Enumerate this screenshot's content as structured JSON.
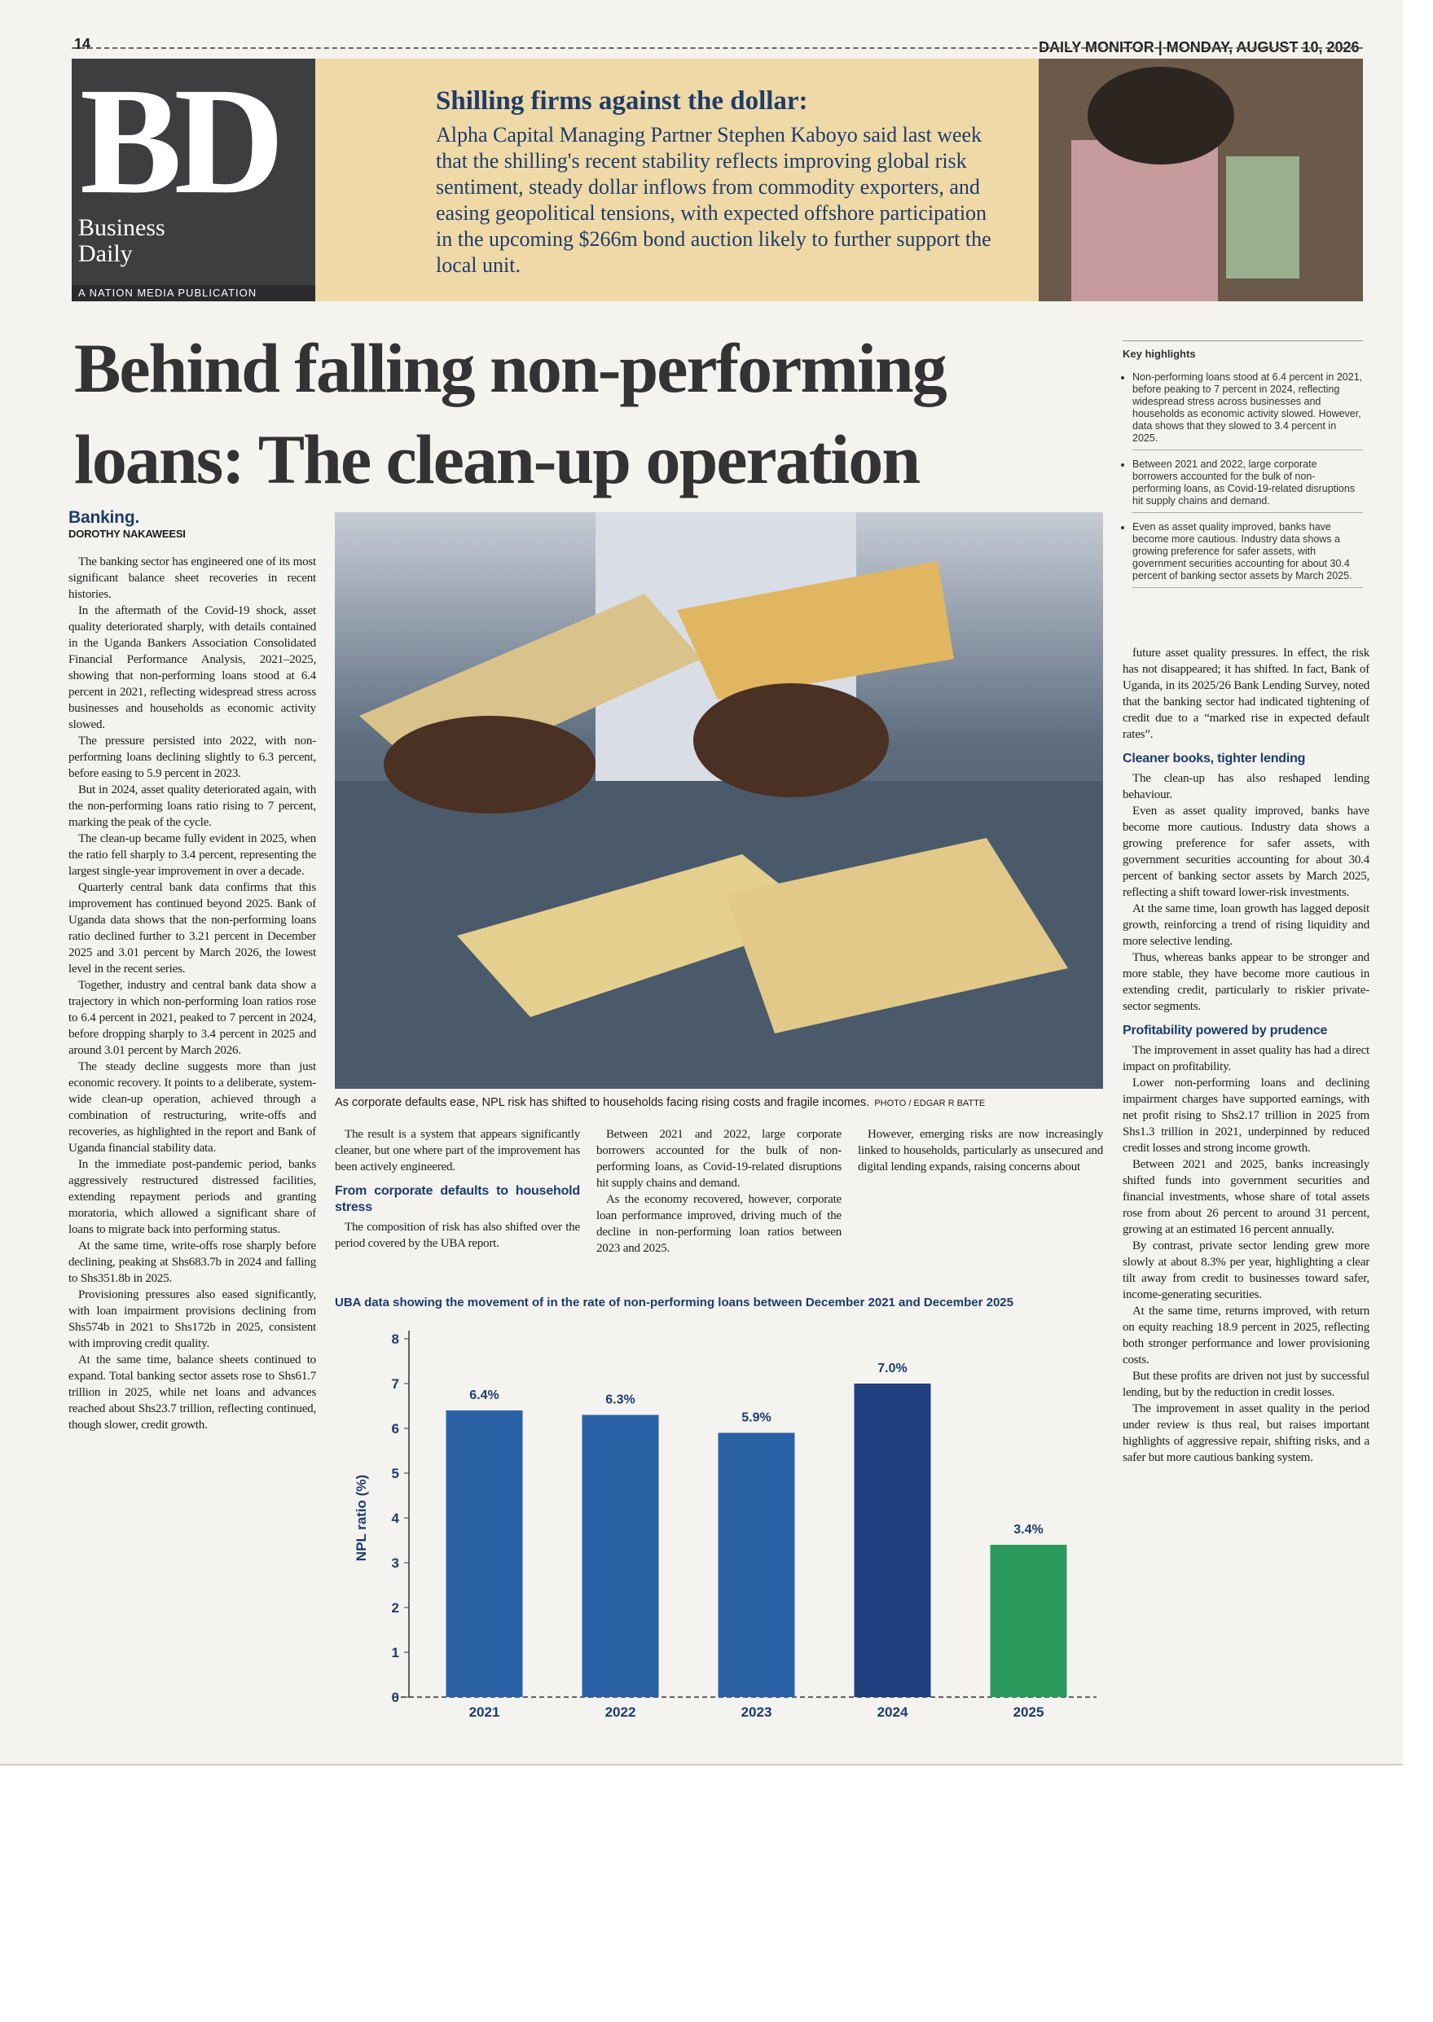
{
  "masthead": {
    "page_number": "14",
    "paper": "DAILY MONITOR",
    "date": "MONDAY, AUGUST 10, 2026"
  },
  "logo": {
    "mark": "BD",
    "name": "Business Daily",
    "tagline": "A NATION MEDIA PUBLICATION"
  },
  "banner": {
    "title": "Shilling firms against the dollar:",
    "body": "Alpha Capital Managing Partner Stephen Kaboyo said last week that the shilling's recent stability reflects improving global risk sentiment, steady dollar inflows from commodity exporters, and easing geopolitical tensions, with expected offshore participation in the upcoming $266m bond auction likely to further support the local unit."
  },
  "headline": "Behind falling non-performing loans: The clean-up operation",
  "key_highlights": {
    "title": "Key highlights",
    "items": [
      "Non-performing loans stood at 6.4 percent in 2021, before peaking to 7 percent in 2024, reflecting widespread stress across businesses and households as economic activity slowed. However, data shows that they slowed to 3.4 percent in 2025.",
      "Between 2021 and 2022, large corporate borrowers accounted for the bulk of non-performing loans, as Covid-19-related disruptions hit supply chains and demand.",
      "Even as asset quality improved, banks have become more cautious. Industry data shows a growing preference for safer assets, with government securities accounting for about 30.4 percent of banking sector assets by March 2025."
    ]
  },
  "left_column": {
    "section": "Banking.",
    "byline": "DOROTHY NAKAWEESI",
    "paragraphs": [
      "The banking sector has engineered one of its most significant balance sheet recoveries in recent histories.",
      "In the aftermath of the Covid-19 shock, asset quality deteriorated sharply, with details contained in the Uganda Bankers Association Consolidated Financial Performance Analysis, 2021–2025, showing that non-performing loans stood at 6.4 percent in 2021, reflecting widespread stress across businesses and households as economic activity slowed.",
      "The pressure persisted into 2022, with non-performing loans declining slightly to 6.3 percent, before easing to 5.9 percent in 2023.",
      "But in 2024, asset quality deteriorated again, with the non-performing loans ratio rising to 7 percent, marking the peak of the cycle.",
      "The clean-up became fully evident in 2025, when the ratio fell sharply to 3.4 percent, representing the largest single-year improvement in over a decade.",
      "Quarterly central bank data confirms that this improvement has continued beyond 2025. Bank of Uganda data shows that the non-performing loans ratio declined further to 3.21 percent in December 2025 and 3.01 percent by March 2026, the lowest level in the recent series.",
      "Together, industry and central bank data show a trajectory in which non-performing loan ratios rose to 6.4 percent in 2021, peaked to 7 percent in 2024, before dropping sharply to 3.4 percent in 2025 and around 3.01 percent by March 2026.",
      "The steady decline suggests more than just economic recovery. It points to a deliberate, system-wide clean-up operation, achieved through a combination of restructuring, write-offs and recoveries, as highlighted in the report and Bank of Uganda financial stability data.",
      "In the immediate post-pandemic period, banks aggressively restructured distressed facilities, extending repayment periods and granting moratoria, which allowed a significant share of loans to migrate back into performing status.",
      "At the same time, write-offs rose sharply before declining, peaking at Shs683.7b in 2024 and falling to Shs351.8b in 2025.",
      "Provisioning pressures also eased significantly, with loan impairment provisions declining from Shs574b in 2021 to Shs172b in 2025, consistent with improving credit quality.",
      "At the same time, balance sheets continued to expand. Total banking sector assets rose to Shs61.7 trillion in 2025, while net loans and advances reached about Shs23.7 trillion, reflecting continued, though slower, credit growth."
    ]
  },
  "photo": {
    "caption": "As corporate defaults ease, NPL risk has shifted to households facing rising costs and fragile incomes.",
    "credit": "PHOTO / EDGAR R BATTE"
  },
  "middle_columns": {
    "paragraphs_before": [
      "The result is a system that appears significantly cleaner, but one where part of the improvement has been actively engineered."
    ],
    "subhead": "From corporate defaults to household stress",
    "paragraphs_after": [
      "The composition of risk has also shifted over the period covered by the UBA report.",
      "Between 2021 and 2022, large corporate borrowers accounted for the bulk of non-performing loans, as Covid-19-related disruptions hit supply chains and demand.",
      "As the economy recovered, however, corporate loan performance improved, driving much of the decline in non-performing loan ratios between 2023 and 2025.",
      "However, emerging risks are now increasingly linked to households, particularly as unsecured and digital lending expands, raising concerns about"
    ]
  },
  "right_column": {
    "sections": [
      {
        "paragraphs": [
          "future asset quality pressures. In effect, the risk has not disappeared; it has shifted. In fact, Bank of Uganda, in its 2025/26 Bank Lending Survey, noted that the banking sector had indicated tightening of credit due to a “marked rise in expected default rates”."
        ]
      },
      {
        "heading": "Cleaner books, tighter lending",
        "paragraphs": [
          "The clean-up has also reshaped lending behaviour.",
          "Even as asset quality improved, banks have become more cautious. Industry data shows a growing preference for safer assets, with government securities accounting for about 30.4 percent of banking sector assets by March 2025, reflecting a shift toward lower-risk investments.",
          "At the same time, loan growth has lagged deposit growth, reinforcing a trend of rising liquidity and more selective lending.",
          "Thus, whereas banks appear to be stronger and more stable, they have become more cautious in extending credit, particularly to riskier private-sector segments."
        ]
      },
      {
        "heading": "Profitability powered by prudence",
        "paragraphs": [
          "The improvement in asset quality has had a direct impact on profitability.",
          "Lower non-performing loans and declining impairment charges have supported earnings, with net profit rising to Shs2.17 trillion in 2025 from Shs1.3 trillion in 2021, underpinned by reduced credit losses and strong income growth.",
          "Between 2021 and 2025, banks increasingly shifted funds into government securities and financial investments, whose share of total assets rose from about 26 percent to around 31 percent, growing at an estimated 16 percent annually.",
          "By contrast, private sector lending grew more slowly at about 8.3% per year, highlighting a clear tilt away from credit to businesses toward safer, income-generating securities.",
          "At the same time, returns improved, with return on equity reaching 18.9 percent in 2025, reflecting both stronger performance and lower provisioning costs.",
          "But these profits are driven not just by successful lending, but by the reduction in credit losses.",
          "The improvement in asset quality in the period under review is thus real, but raises important highlights of aggressive repair, shifting risks, and a safer but more cautious banking system."
        ]
      }
    ]
  },
  "chart_data": {
    "type": "bar",
    "title": "UBA data showing the movement of in the rate of non-performing loans between December 2021 and December 2025",
    "y_label": "NPL ratio (%)",
    "categories": [
      "2021",
      "2022",
      "2023",
      "2024",
      "2025"
    ],
    "values": [
      6.4,
      6.3,
      5.9,
      7.0,
      3.4
    ],
    "value_labels": [
      "6.4%",
      "6.3%",
      "5.9%",
      "7.0%",
      "3.4%"
    ],
    "colors": [
      "#2b62a6",
      "#2b62a6",
      "#2b62a6",
      "#1f3f7e",
      "#2b9a5c"
    ],
    "ylim": [
      0,
      8
    ],
    "yticks": [
      0,
      1,
      2,
      3,
      4,
      5,
      6,
      7,
      8
    ]
  }
}
